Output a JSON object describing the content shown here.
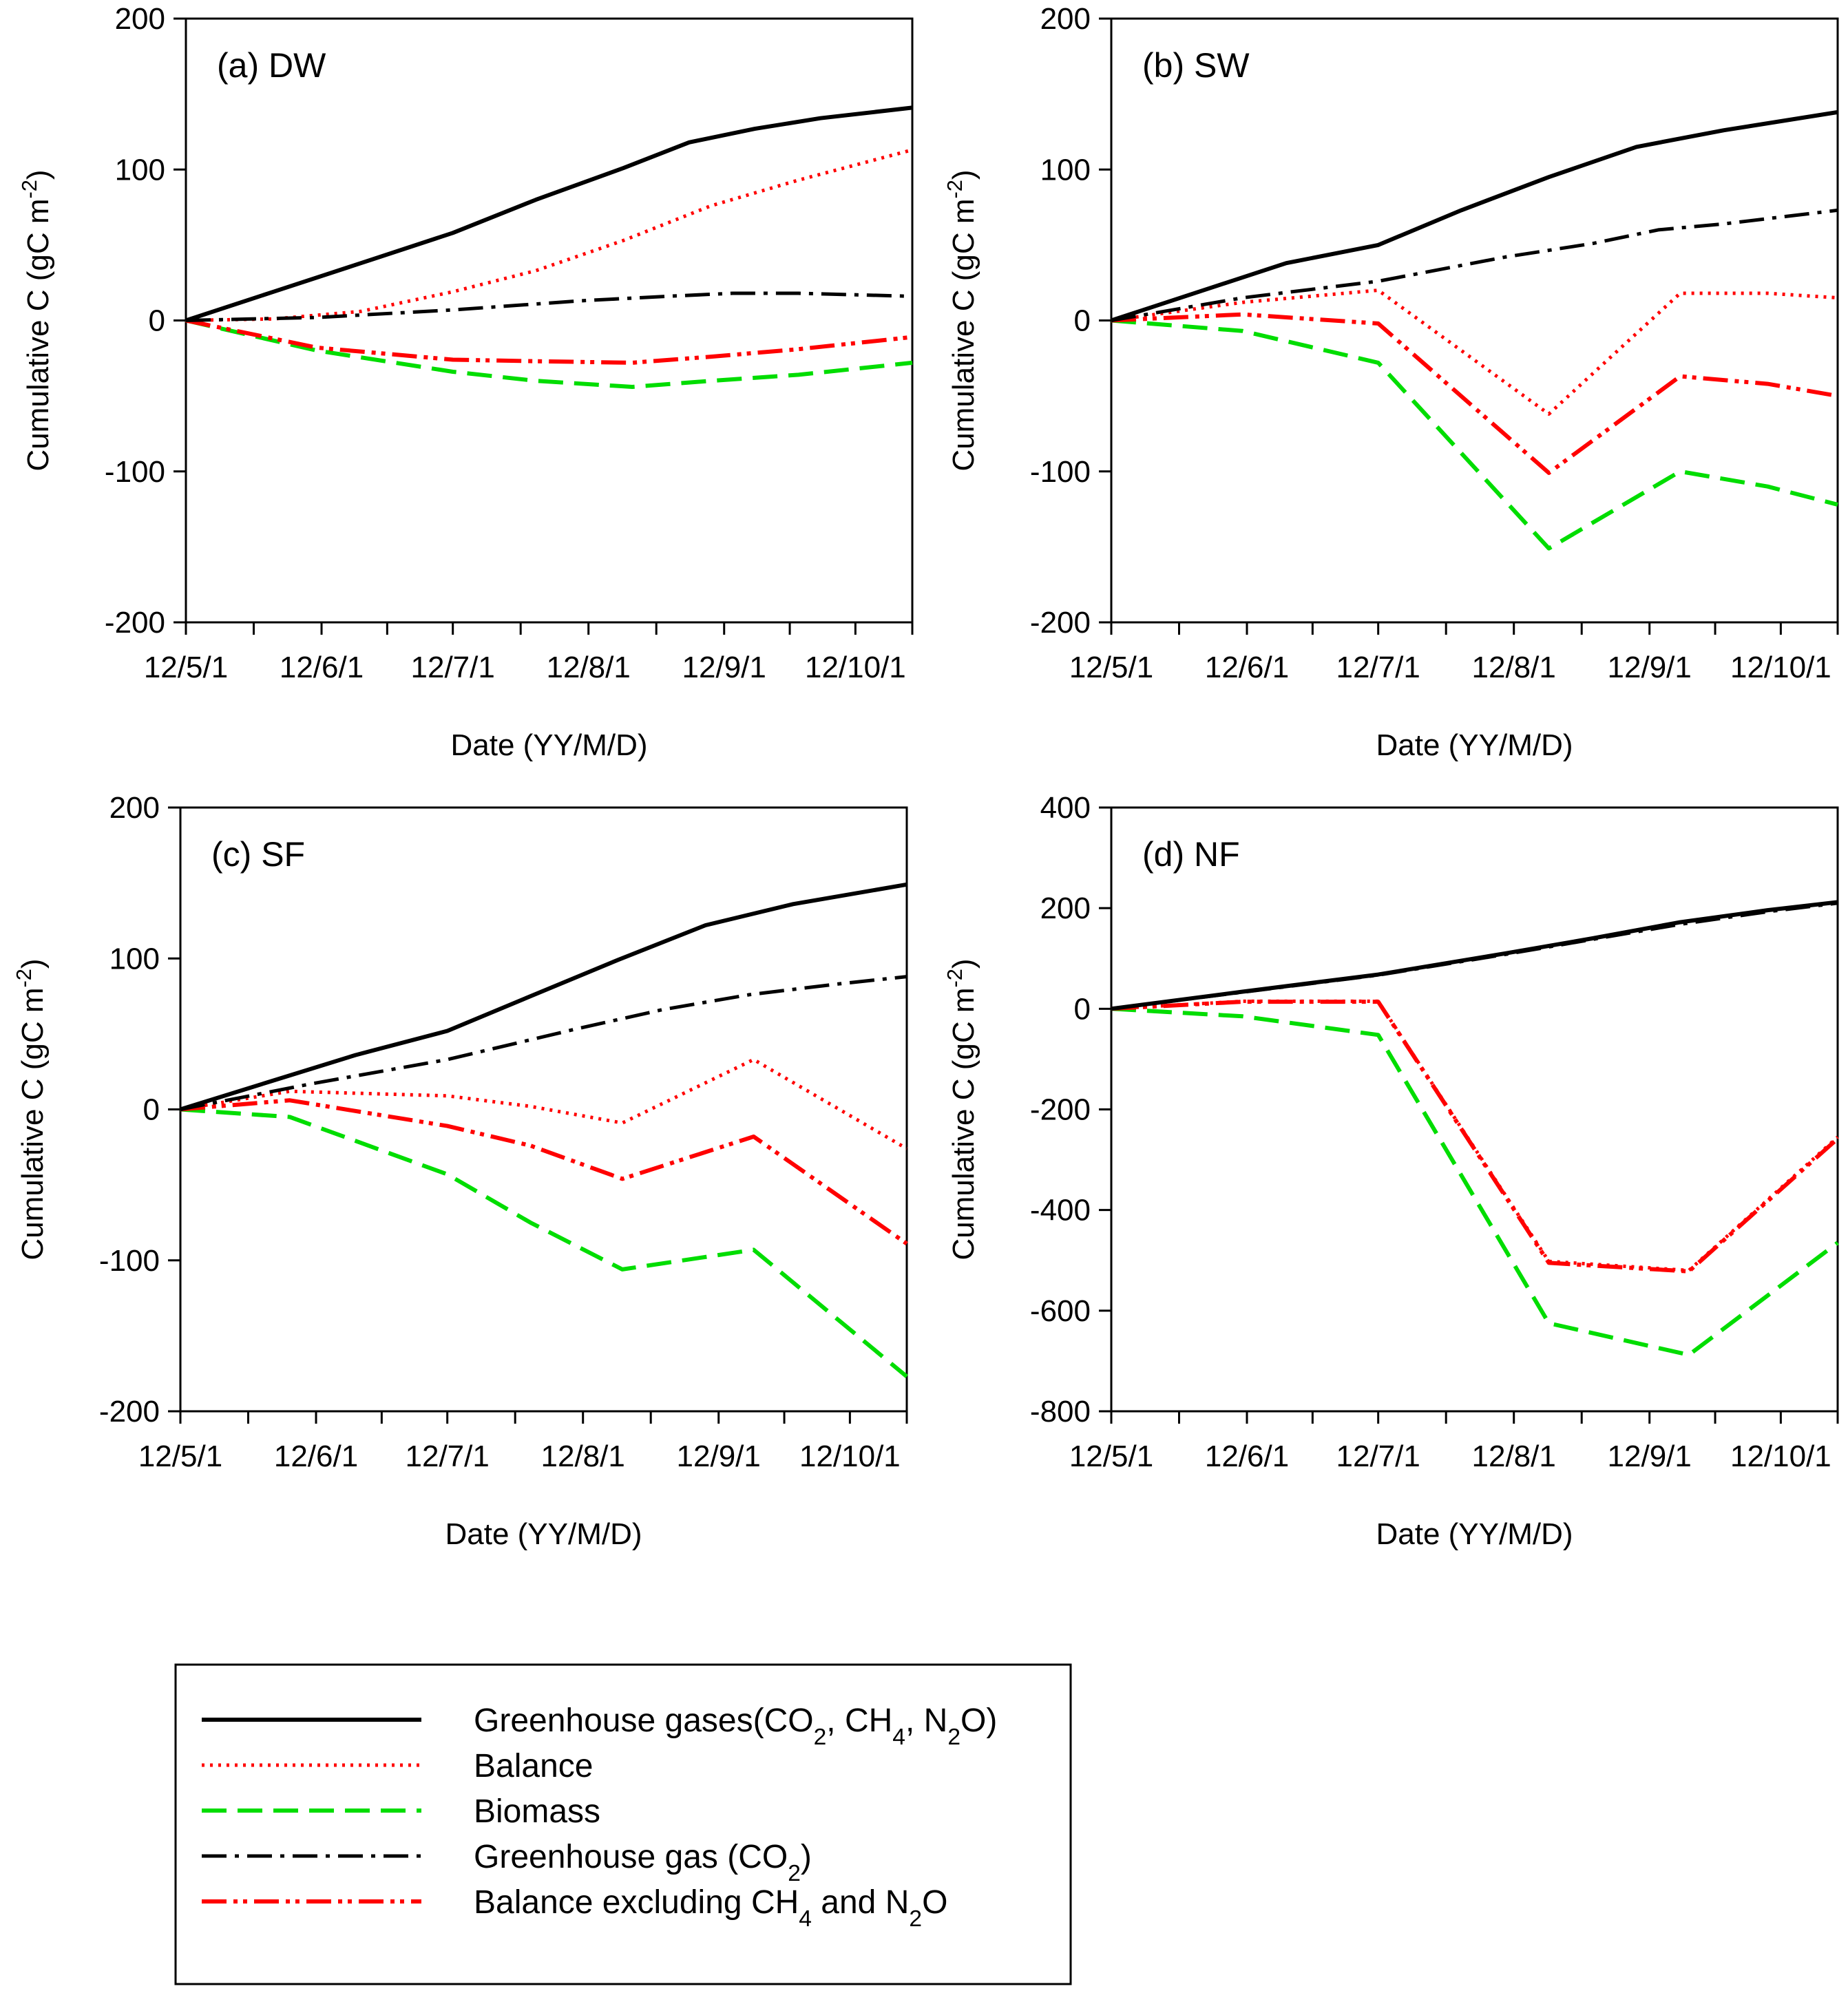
{
  "colors": {
    "ghg_total": "#000000",
    "balance": "#ff0000",
    "biomass": "#00dd00",
    "ghg_co2": "#000000",
    "balance_excl": "#ff0000"
  },
  "legend": {
    "items": [
      {
        "key": "ghg_total",
        "parts": [
          [
            "Greenhouse gases(CO",
            ""
          ],
          [
            "2",
            "sub"
          ],
          [
            ", CH",
            ""
          ],
          [
            "4",
            "sub"
          ],
          [
            ", N",
            ""
          ],
          [
            "2",
            "sub"
          ],
          [
            "O)",
            ""
          ]
        ]
      },
      {
        "key": "balance",
        "parts": [
          [
            "Balance",
            ""
          ]
        ]
      },
      {
        "key": "biomass",
        "parts": [
          [
            "Biomass",
            ""
          ]
        ]
      },
      {
        "key": "ghg_co2",
        "parts": [
          [
            "Greenhouse gas (CO",
            ""
          ],
          [
            "2",
            "sub"
          ],
          [
            ")",
            ""
          ]
        ]
      },
      {
        "key": "balance_excl",
        "parts": [
          [
            "Balance excluding CH",
            ""
          ],
          [
            "4",
            "sub"
          ],
          [
            " and N",
            ""
          ],
          [
            "2",
            "sub"
          ],
          [
            "O",
            ""
          ]
        ]
      }
    ]
  },
  "chart_data": [
    {
      "type": "line",
      "title": "(a) DW",
      "xlabel": "Date (YY/M/D)",
      "ylabel": "Cumulative C (gC m-2)",
      "ylabel_parts": [
        [
          "Cumulative C (gC m",
          ""
        ],
        [
          "-2",
          "sup"
        ],
        [
          ")",
          ""
        ]
      ],
      "ylim": [
        -200,
        200
      ],
      "yticks": [
        -200,
        -100,
        0,
        100,
        200
      ],
      "xlim": [
        0,
        166
      ],
      "xticks": [
        {
          "x": 0,
          "label": "12/5/1"
        },
        {
          "x": 31,
          "label": "12/6/1"
        },
        {
          "x": 61,
          "label": "12/7/1"
        },
        {
          "x": 92,
          "label": "12/8/1"
        },
        {
          "x": 123,
          "label": "12/9/1"
        },
        {
          "x": 153,
          "label": "12/10/1"
        }
      ],
      "series": [
        {
          "key": "ghg_total",
          "name": "Greenhouse gases(CO2, CH4, N2O)",
          "x": [
            0,
            20,
            40,
            61,
            80,
            100,
            115,
            130,
            145,
            166
          ],
          "y": [
            0,
            19,
            38,
            58,
            80,
            101,
            118,
            127,
            134,
            141
          ]
        },
        {
          "key": "balance",
          "name": "Balance",
          "x": [
            0,
            20,
            40,
            61,
            80,
            100,
            120,
            140,
            166
          ],
          "y": [
            0,
            1,
            6,
            19,
            33,
            53,
            76,
            93,
            113
          ]
        },
        {
          "key": "biomass",
          "name": "Biomass",
          "x": [
            0,
            30,
            61,
            80,
            102,
            120,
            140,
            166
          ],
          "y": [
            0,
            -20,
            -34,
            -40,
            -44,
            -40,
            -36,
            -28
          ]
        },
        {
          "key": "ghg_co2",
          "name": "Greenhouse gas (CO2)",
          "x": [
            0,
            30,
            61,
            90,
            110,
            125,
            140,
            166
          ],
          "y": [
            0,
            2,
            7,
            13,
            16,
            18,
            18,
            16
          ]
        },
        {
          "key": "balance_excl",
          "name": "Balance excluding CH4 and N2O",
          "x": [
            0,
            30,
            61,
            80,
            102,
            120,
            140,
            166
          ],
          "y": [
            0,
            -18,
            -26,
            -27,
            -28,
            -24,
            -19,
            -11
          ]
        }
      ]
    },
    {
      "type": "line",
      "title": "(b) SW",
      "xlabel": "Date (YY/M/D)",
      "ylabel": "Cumulative C (gC m-2)",
      "ylabel_parts": [
        [
          "Cumulative C (gC m",
          ""
        ],
        [
          "-2",
          "sup"
        ],
        [
          ")",
          ""
        ]
      ],
      "ylim": [
        -200,
        200
      ],
      "yticks": [
        -200,
        -100,
        0,
        100,
        200
      ],
      "xlim": [
        0,
        166
      ],
      "xticks": [
        {
          "x": 0,
          "label": "12/5/1"
        },
        {
          "x": 31,
          "label": "12/6/1"
        },
        {
          "x": 61,
          "label": "12/7/1"
        },
        {
          "x": 92,
          "label": "12/8/1"
        },
        {
          "x": 123,
          "label": "12/9/1"
        },
        {
          "x": 153,
          "label": "12/10/1"
        }
      ],
      "series": [
        {
          "key": "ghg_total",
          "name": "Greenhouse gases(CO2, CH4, N2O)",
          "x": [
            0,
            20,
            40,
            61,
            80,
            100,
            120,
            140,
            166
          ],
          "y": [
            0,
            19,
            38,
            50,
            73,
            95,
            115,
            126,
            138
          ]
        },
        {
          "key": "balance",
          "name": "Balance",
          "x": [
            0,
            30,
            61,
            100,
            130,
            150,
            166
          ],
          "y": [
            0,
            12,
            20,
            -62,
            18,
            18,
            15
          ]
        },
        {
          "key": "biomass",
          "name": "Biomass",
          "x": [
            0,
            30,
            61,
            100,
            130,
            150,
            166
          ],
          "y": [
            0,
            -7,
            -28,
            -151,
            -100,
            -110,
            -122
          ]
        },
        {
          "key": "ghg_co2",
          "name": "Greenhouse gas (CO2)",
          "x": [
            0,
            30,
            61,
            90,
            110,
            125,
            140,
            166
          ],
          "y": [
            0,
            15,
            26,
            42,
            51,
            60,
            64,
            73
          ]
        },
        {
          "key": "balance_excl",
          "name": "Balance excluding CH4 and N2O",
          "x": [
            0,
            30,
            61,
            100,
            130,
            150,
            166
          ],
          "y": [
            0,
            4,
            -2,
            -101,
            -37,
            -42,
            -50
          ]
        }
      ]
    },
    {
      "type": "line",
      "title": "(c) SF",
      "xlabel": "Date (YY/M/D)",
      "ylabel": "Cumulative C (gC m-2)",
      "ylabel_parts": [
        [
          "Cumulative C (gC m",
          ""
        ],
        [
          "-2",
          "sup"
        ],
        [
          ")",
          ""
        ]
      ],
      "ylim": [
        -200,
        200
      ],
      "yticks": [
        -200,
        -100,
        0,
        100,
        200
      ],
      "xlim": [
        0,
        166
      ],
      "xticks": [
        {
          "x": 0,
          "label": "12/5/1"
        },
        {
          "x": 31,
          "label": "12/6/1"
        },
        {
          "x": 61,
          "label": "12/7/1"
        },
        {
          "x": 92,
          "label": "12/8/1"
        },
        {
          "x": 123,
          "label": "12/9/1"
        },
        {
          "x": 153,
          "label": "12/10/1"
        }
      ],
      "series": [
        {
          "key": "ghg_total",
          "name": "Greenhouse gases(CO2, CH4, N2O)",
          "x": [
            0,
            20,
            40,
            61,
            80,
            100,
            120,
            140,
            166
          ],
          "y": [
            0,
            18,
            36,
            52,
            75,
            99,
            122,
            136,
            149
          ]
        },
        {
          "key": "balance",
          "name": "Balance",
          "x": [
            0,
            25,
            61,
            80,
            101,
            131,
            166
          ],
          "y": [
            0,
            12,
            9,
            2,
            -9,
            33,
            -26
          ]
        },
        {
          "key": "biomass",
          "name": "Biomass",
          "x": [
            0,
            25,
            61,
            80,
            101,
            131,
            166
          ],
          "y": [
            0,
            -5,
            -43,
            -75,
            -106,
            -93,
            -177
          ]
        },
        {
          "key": "ghg_co2",
          "name": "Greenhouse gas (CO2)",
          "x": [
            0,
            30,
            61,
            90,
            110,
            130,
            150,
            166
          ],
          "y": [
            0,
            17,
            33,
            53,
            66,
            76,
            83,
            88
          ]
        },
        {
          "key": "balance_excl",
          "name": "Balance excluding CH4 and N2O",
          "x": [
            0,
            25,
            61,
            80,
            101,
            131,
            166
          ],
          "y": [
            0,
            6,
            -11,
            -24,
            -46,
            -18,
            -89
          ]
        }
      ]
    },
    {
      "type": "line",
      "title": "(d) NF",
      "xlabel": "Date (YY/M/D)",
      "ylabel": "Cumulative C (gC m-2)",
      "ylabel_parts": [
        [
          "Cumulative C (gC m",
          ""
        ],
        [
          "-2",
          "sup"
        ],
        [
          ")",
          ""
        ]
      ],
      "ylim": [
        -800,
        400
      ],
      "yticks": [
        -800,
        -600,
        -400,
        -200,
        0,
        200,
        400
      ],
      "xlim": [
        0,
        166
      ],
      "xticks": [
        {
          "x": 0,
          "label": "12/5/1"
        },
        {
          "x": 31,
          "label": "12/6/1"
        },
        {
          "x": 61,
          "label": "12/7/1"
        },
        {
          "x": 92,
          "label": "12/8/1"
        },
        {
          "x": 123,
          "label": "12/9/1"
        },
        {
          "x": 153,
          "label": "12/10/1"
        }
      ],
      "series": [
        {
          "key": "ghg_total",
          "name": "Greenhouse gases(CO2, CH4, N2O)",
          "x": [
            0,
            30,
            61,
            90,
            110,
            130,
            150,
            166
          ],
          "y": [
            0,
            34,
            68,
            110,
            140,
            172,
            196,
            212
          ]
        },
        {
          "key": "balance",
          "name": "Balance",
          "x": [
            0,
            30,
            61,
            100,
            132,
            166
          ],
          "y": [
            0,
            15,
            15,
            -502,
            -520,
            -255
          ]
        },
        {
          "key": "biomass",
          "name": "Biomass",
          "x": [
            0,
            30,
            61,
            100,
            132,
            166
          ],
          "y": [
            0,
            -15,
            -52,
            -625,
            -688,
            -465
          ]
        },
        {
          "key": "ghg_co2",
          "name": "Greenhouse gas (CO2)",
          "x": [
            0,
            30,
            61,
            90,
            110,
            130,
            150,
            166
          ],
          "y": [
            0,
            33,
            67,
            108,
            138,
            168,
            193,
            210
          ]
        },
        {
          "key": "balance_excl",
          "name": "Balance excluding CH4 and N2O",
          "x": [
            0,
            30,
            61,
            100,
            132,
            166
          ],
          "y": [
            0,
            14,
            14,
            -505,
            -522,
            -258
          ]
        }
      ]
    }
  ]
}
